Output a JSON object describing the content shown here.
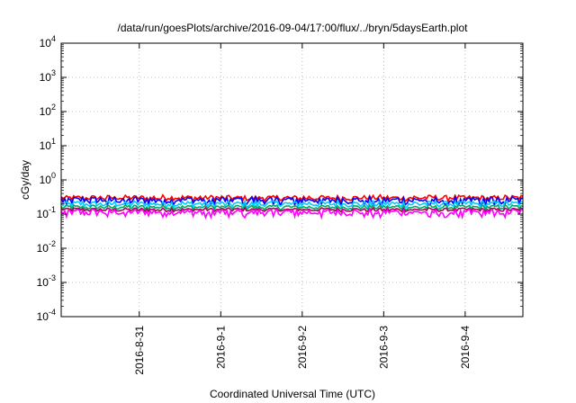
{
  "chart_data": {
    "type": "line",
    "title": "/data/run/goesPlots/archive/2016-09-04/17:00/flux/../bryn/5daysEarth.plot",
    "xlabel": "Coordinated Universal Time (UTC)",
    "ylabel": "cGy/day",
    "y_scale": "log",
    "ylim": [
      0.0001,
      10000
    ],
    "y_ticks": [
      {
        "value": 0.0001,
        "base": "10",
        "exp": "-4"
      },
      {
        "value": 0.001,
        "base": "10",
        "exp": "-3"
      },
      {
        "value": 0.01,
        "base": "10",
        "exp": "-2"
      },
      {
        "value": 0.1,
        "base": "10",
        "exp": "-1"
      },
      {
        "value": 1,
        "base": "10",
        "exp": "0"
      },
      {
        "value": 10,
        "base": "10",
        "exp": "1"
      },
      {
        "value": 100,
        "base": "10",
        "exp": "2"
      },
      {
        "value": 1000,
        "base": "10",
        "exp": "3"
      },
      {
        "value": 10000,
        "base": "10",
        "exp": "4"
      }
    ],
    "xlim": [
      "2016-08-30T01:00",
      "2016-09-04T17:00"
    ],
    "x_ticks": [
      "2016-8-31",
      "2016-9-1",
      "2016-9-2",
      "2016-9-3",
      "2016-9-4"
    ],
    "grid": true,
    "series": [
      {
        "color": "#ff0000",
        "level": 0.3,
        "noise": 0.18,
        "dips": false
      },
      {
        "color": "#0000ff",
        "level": 0.26,
        "noise": 0.25,
        "dips": true
      },
      {
        "color": "#00ccff",
        "level": 0.2,
        "noise": 0.2,
        "dips": false
      },
      {
        "color": "#00aa66",
        "level": 0.16,
        "noise": 0.15,
        "dips": false
      },
      {
        "color": "#aa0055",
        "level": 0.135,
        "noise": 0.12,
        "dips": false
      },
      {
        "color": "#ff00ff",
        "level": 0.115,
        "noise": 0.22,
        "dips": true
      }
    ]
  }
}
